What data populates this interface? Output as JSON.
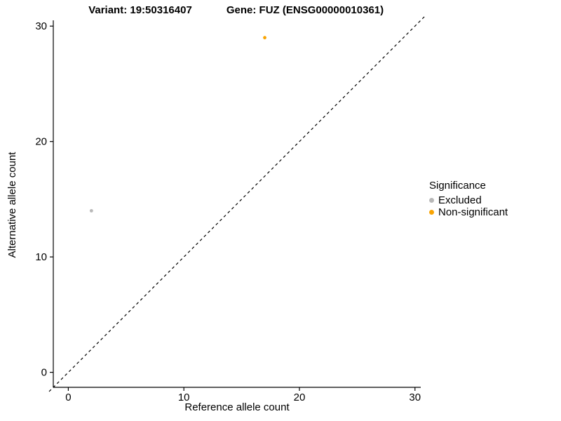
{
  "titles": {
    "variant": "Variant: 19:50316407",
    "gene": "Gene: FUZ (ENSG00000010361)"
  },
  "chart_data": {
    "type": "scatter",
    "title": "Variant: 19:50316407  Gene: FUZ (ENSG00000010361)",
    "xlabel": "Reference allele count",
    "ylabel": "Alternative allele count",
    "xlim": [
      -1.3,
      30.5
    ],
    "ylim": [
      -1.3,
      30.5
    ],
    "xticks": [
      0,
      10,
      20,
      30
    ],
    "yticks": [
      0,
      10,
      20,
      30
    ],
    "grid": false,
    "identity_line": {
      "style": "dashed",
      "from": [
        -1.3,
        -1.3
      ],
      "to": [
        30.5,
        30.5
      ],
      "color": "#000000"
    },
    "series": [
      {
        "name": "Excluded",
        "color": "#b8b8b8",
        "points": [
          [
            2,
            14
          ]
        ]
      },
      {
        "name": "Non-significant",
        "color": "#f9a403",
        "points": [
          [
            17,
            29
          ]
        ]
      }
    ],
    "legend": {
      "title": "Significance",
      "position": "right"
    }
  }
}
